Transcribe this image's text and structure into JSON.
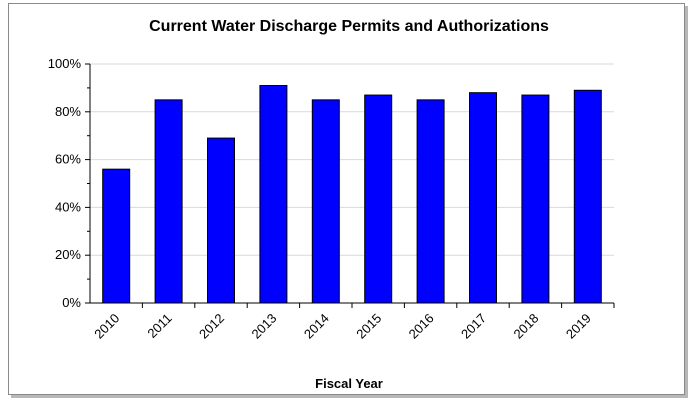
{
  "chart_data": {
    "type": "bar",
    "title": "Current Water Discharge Permits and Authorizations",
    "xlabel": "Fiscal Year",
    "ylabel": "",
    "categories": [
      "2010",
      "2011",
      "2012",
      "2013",
      "2014",
      "2015",
      "2016",
      "2017",
      "2018",
      "2019"
    ],
    "values": [
      56,
      85,
      69,
      91,
      85,
      87,
      85,
      88,
      87,
      89
    ],
    "ylim": [
      0,
      100
    ],
    "yticks": [
      0,
      20,
      40,
      60,
      80,
      100
    ],
    "ytick_labels": [
      "0%",
      "20%",
      "40%",
      "60%",
      "80%",
      "100%"
    ],
    "grid": true,
    "legend": "none",
    "colors": {
      "bar": "#0000ff",
      "bar_edge": "#000000",
      "grid": "#d9d9d9"
    }
  }
}
